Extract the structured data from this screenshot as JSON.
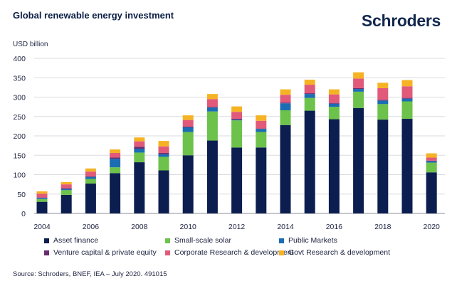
{
  "header": {
    "title": "Global renewable energy investment",
    "logo_text": "Schroders"
  },
  "footer": {
    "source": "Source: Schroders, BNEF, IEA – July 2020. 491015"
  },
  "chart_data": {
    "type": "bar",
    "stacked": true,
    "title": "Global renewable energy investment",
    "ylabel": "USD billion",
    "xlabel": "",
    "ylim": [
      0,
      400
    ],
    "yticks": [
      0,
      50,
      100,
      150,
      200,
      250,
      300,
      350,
      400
    ],
    "grid": true,
    "legend_position": "bottom",
    "categories": [
      "2004",
      "2005",
      "2006",
      "2007",
      "2008",
      "2009",
      "2010",
      "2011",
      "2012",
      "2013",
      "2014",
      "2015",
      "2016",
      "2017",
      "2018",
      "2019",
      "2020"
    ],
    "x_tick_labels": [
      "2004",
      "",
      "2006",
      "",
      "2008",
      "",
      "2010",
      "",
      "2012",
      "",
      "2014",
      "",
      "2016",
      "",
      "2018",
      "",
      "2020"
    ],
    "series": [
      {
        "name": "Asset finance",
        "color": "#0c1e4f",
        "values": [
          30,
          48,
          77,
          104,
          132,
          111,
          150,
          188,
          170,
          170,
          228,
          265,
          243,
          272,
          242,
          244,
          106
        ]
      },
      {
        "name": "Small-scale solar",
        "color": "#6cc24a",
        "values": [
          7,
          12,
          12,
          15,
          25,
          35,
          60,
          75,
          70,
          40,
          38,
          33,
          32,
          42,
          40,
          45,
          25
        ]
      },
      {
        "name": "Public Markets",
        "color": "#1b6db3",
        "values": [
          3,
          3,
          5,
          22,
          10,
          7,
          12,
          10,
          2,
          8,
          18,
          10,
          8,
          7,
          9,
          7,
          4
        ]
      },
      {
        "name": "Venture capital & private equity",
        "color": "#6a2c70",
        "values": [
          1,
          2,
          2,
          3,
          5,
          3,
          2,
          2,
          2,
          1,
          2,
          2,
          2,
          2,
          2,
          2,
          1
        ]
      },
      {
        "name": "Corporate Research & development",
        "color": "#e15a7a",
        "values": [
          10,
          10,
          12,
          12,
          14,
          17,
          17,
          20,
          18,
          20,
          20,
          22,
          22,
          25,
          30,
          30,
          8
        ]
      },
      {
        "name": "Govt Research & development",
        "color": "#f5b324",
        "values": [
          6,
          6,
          8,
          9,
          10,
          14,
          12,
          13,
          14,
          14,
          14,
          13,
          13,
          16,
          14,
          16,
          11
        ]
      }
    ]
  }
}
